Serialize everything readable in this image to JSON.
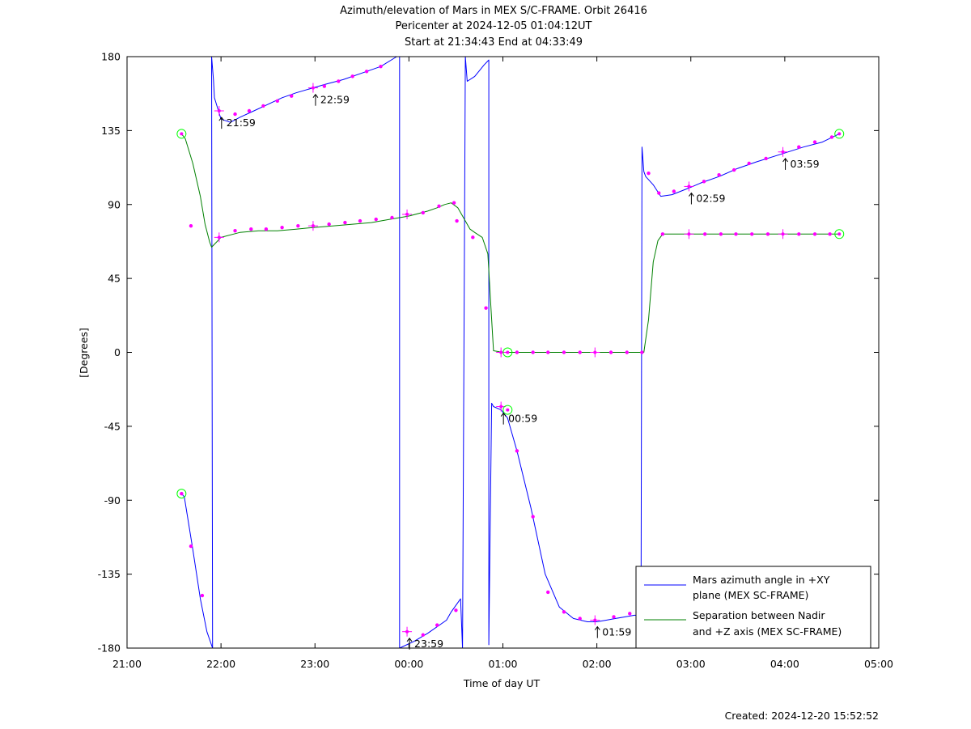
{
  "chart_data": {
    "type": "line",
    "title_lines": [
      "Azimuth/elevation of Mars in MEX S/C-FRAME.  Orbit 26416",
      "Pericenter at 2024-12-05 01:04:12UT",
      "Start at 21:34:43 End at 04:33:49"
    ],
    "xlabel": "Time of day UT",
    "ylabel": "[Degrees]",
    "xlim": [
      21.0,
      29.0
    ],
    "ylim": [
      -180,
      180
    ],
    "x_ticks": [
      {
        "v": 21,
        "label": "21:00"
      },
      {
        "v": 22,
        "label": "22:00"
      },
      {
        "v": 23,
        "label": "23:00"
      },
      {
        "v": 24,
        "label": "00:00"
      },
      {
        "v": 25,
        "label": "01:00"
      },
      {
        "v": 26,
        "label": "02:00"
      },
      {
        "v": 27,
        "label": "03:00"
      },
      {
        "v": 28,
        "label": "04:00"
      },
      {
        "v": 29,
        "label": "05:00"
      }
    ],
    "y_ticks": [
      {
        "v": 180,
        "label": "180"
      },
      {
        "v": 135,
        "label": "135"
      },
      {
        "v": 90,
        "label": "90"
      },
      {
        "v": 45,
        "label": "45"
      },
      {
        "v": 0,
        "label": "0"
      },
      {
        "v": -45,
        "label": "-45"
      },
      {
        "v": -90,
        "label": "-90"
      },
      {
        "v": -135,
        "label": "-135"
      },
      {
        "v": -180,
        "label": "-180"
      }
    ],
    "grid": false,
    "legend_position": "bottom-right",
    "series": [
      {
        "name": "Mars azimuth angle in +XY plane (MEX SC-FRAME)",
        "legend_lines": [
          "Mars azimuth angle in +XY",
          "plane (MEX SC-FRAME)"
        ],
        "color": "#0000ff",
        "x": [
          21.58,
          21.61,
          21.7,
          21.78,
          21.85,
          21.91,
          21.9,
          21.92,
          21.93,
          22.0,
          22.1,
          22.2,
          22.35,
          22.5,
          22.65,
          22.8,
          22.98,
          23.1,
          23.3,
          23.5,
          23.7,
          23.87,
          23.9,
          23.9,
          24.05,
          24.2,
          24.4,
          24.45,
          24.55,
          24.57,
          24.6,
          24.62,
          24.7,
          24.8,
          24.85,
          24.85,
          24.86,
          24.88,
          24.9,
          24.98,
          25.05,
          25.15,
          25.3,
          25.45,
          25.6,
          25.75,
          25.9,
          26.0,
          26.1,
          26.2,
          26.4,
          26.47,
          26.48,
          26.5,
          26.52,
          26.6,
          26.68,
          26.8,
          26.98,
          27.1,
          27.3,
          27.5,
          27.7,
          27.98,
          28.2,
          28.4,
          28.58
        ],
        "y": [
          -86,
          -88,
          -120,
          -150,
          -170,
          -180,
          180,
          166,
          155,
          142,
          140,
          143,
          147,
          151,
          155,
          158,
          161,
          163,
          166,
          170,
          174,
          180,
          180,
          -180,
          -176,
          -171,
          -163,
          -158,
          -150,
          -180,
          180,
          165,
          168,
          175,
          178,
          -178,
          -130,
          -31,
          -33,
          -35,
          -40,
          -60,
          -95,
          -135,
          -155,
          -162,
          -164,
          -164,
          -163,
          -162,
          -160,
          -160,
          125,
          110,
          107,
          102,
          95,
          96,
          100,
          103,
          107,
          112,
          116,
          121,
          125,
          128,
          133
        ]
      },
      {
        "name": "Separation between Nadir and +Z axis (MEX SC-FRAME)",
        "legend_lines": [
          "Separation between Nadir",
          "and +Z axis (MEX SC-FRAME)"
        ],
        "color": "#008000",
        "x": [
          21.58,
          21.62,
          21.7,
          21.78,
          21.83,
          21.88,
          21.9,
          21.95,
          22.0,
          22.2,
          22.4,
          22.6,
          22.8,
          22.98,
          23.2,
          23.4,
          23.6,
          23.8,
          24.0,
          24.2,
          24.3,
          24.38,
          24.45,
          24.52,
          24.6,
          24.65,
          24.7,
          24.78,
          24.84,
          24.87,
          24.9,
          25.0,
          25.2,
          25.4,
          25.6,
          25.8,
          26.0,
          26.2,
          26.4,
          26.5,
          26.55,
          26.6,
          26.65,
          26.7,
          26.8,
          27.0,
          27.2,
          27.4,
          27.6,
          27.8,
          28.0,
          28.2,
          28.4,
          28.58
        ],
        "y": [
          133,
          130,
          115,
          95,
          78,
          67,
          64,
          67,
          70,
          73,
          74,
          74,
          75,
          76,
          77,
          78,
          79,
          81,
          83,
          86,
          88,
          90,
          91,
          88,
          80,
          75,
          73,
          70,
          60,
          30,
          1,
          0,
          0,
          0,
          0,
          0,
          0,
          0,
          0,
          0,
          20,
          55,
          68,
          72,
          72,
          72,
          72,
          72,
          72,
          72,
          72,
          72,
          72,
          72
        ]
      }
    ],
    "markers": {
      "dots": [
        [
          21.58,
          -86
        ],
        [
          21.68,
          -118
        ],
        [
          21.8,
          -148
        ],
        [
          22.15,
          145
        ],
        [
          22.3,
          147
        ],
        [
          22.45,
          150
        ],
        [
          22.6,
          153
        ],
        [
          22.75,
          156
        ],
        [
          23.1,
          162
        ],
        [
          23.25,
          165
        ],
        [
          23.4,
          168
        ],
        [
          23.55,
          171
        ],
        [
          23.7,
          174
        ],
        [
          24.15,
          -172
        ],
        [
          24.3,
          -166
        ],
        [
          24.5,
          -157
        ],
        [
          25.15,
          -60
        ],
        [
          25.32,
          -100
        ],
        [
          25.48,
          -146
        ],
        [
          25.65,
          -158
        ],
        [
          25.82,
          -162
        ],
        [
          26.18,
          -161
        ],
        [
          26.35,
          -159
        ],
        [
          26.55,
          109
        ],
        [
          26.66,
          97
        ],
        [
          26.82,
          98
        ],
        [
          27.14,
          104
        ],
        [
          27.3,
          108
        ],
        [
          27.46,
          111
        ],
        [
          27.62,
          115
        ],
        [
          27.8,
          118
        ],
        [
          28.15,
          125
        ],
        [
          28.32,
          128
        ],
        [
          28.5,
          131
        ],
        [
          21.68,
          77
        ],
        [
          22.15,
          74
        ],
        [
          22.32,
          75
        ],
        [
          22.48,
          75
        ],
        [
          22.65,
          76
        ],
        [
          22.82,
          77
        ],
        [
          23.15,
          78
        ],
        [
          23.32,
          79
        ],
        [
          23.48,
          80
        ],
        [
          23.65,
          81
        ],
        [
          23.82,
          82
        ],
        [
          24.15,
          85
        ],
        [
          24.32,
          89
        ],
        [
          24.48,
          91
        ],
        [
          24.51,
          80
        ],
        [
          24.68,
          70
        ],
        [
          24.82,
          27
        ],
        [
          25.15,
          0
        ],
        [
          25.32,
          0
        ],
        [
          25.48,
          0
        ],
        [
          25.65,
          0
        ],
        [
          25.82,
          0
        ],
        [
          26.15,
          0
        ],
        [
          26.32,
          0
        ],
        [
          26.48,
          0
        ],
        [
          26.7,
          72
        ],
        [
          27.15,
          72
        ],
        [
          27.32,
          72
        ],
        [
          27.48,
          72
        ],
        [
          27.65,
          72
        ],
        [
          27.82,
          72
        ],
        [
          28.15,
          72
        ],
        [
          28.32,
          72
        ],
        [
          28.48,
          72
        ]
      ],
      "crosses": [
        [
          21.98,
          147
        ],
        [
          22.98,
          161
        ],
        [
          23.98,
          -170
        ],
        [
          24.98,
          -33
        ],
        [
          25.98,
          -163
        ],
        [
          26.98,
          101
        ],
        [
          27.98,
          122
        ],
        [
          21.98,
          70
        ],
        [
          22.98,
          77
        ],
        [
          23.98,
          84
        ],
        [
          24.98,
          0
        ],
        [
          25.98,
          0
        ],
        [
          26.98,
          72
        ],
        [
          27.98,
          72
        ]
      ],
      "circles": [
        [
          21.58,
          133
        ],
        [
          21.58,
          -86
        ],
        [
          28.58,
          133
        ],
        [
          28.58,
          72
        ],
        [
          25.05,
          0
        ],
        [
          25.05,
          -35
        ]
      ]
    },
    "annotations": [
      {
        "x": 21.98,
        "y": 143,
        "label": "21:59"
      },
      {
        "x": 22.98,
        "y": 157,
        "label": "22:59"
      },
      {
        "x": 23.98,
        "y": -174,
        "label": "23:59"
      },
      {
        "x": 24.98,
        "y": -37,
        "label": "00:59"
      },
      {
        "x": 25.98,
        "y": -167,
        "label": "01:59"
      },
      {
        "x": 26.98,
        "y": 97,
        "label": "02:59"
      },
      {
        "x": 27.98,
        "y": 118,
        "label": "03:59"
      }
    ]
  },
  "footer": {
    "created": "Created: 2024-12-20 15:52:52"
  }
}
